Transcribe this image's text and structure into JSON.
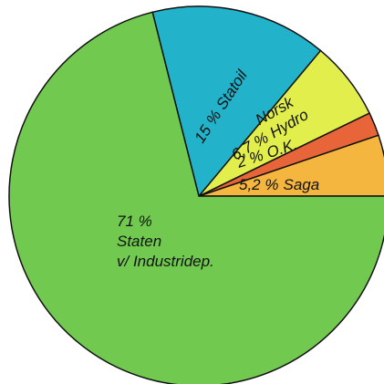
{
  "chart_data": {
    "type": "pie",
    "categories": [
      "Saga",
      "O.K.",
      [
        "Norsk",
        "Hydro"
      ],
      "Statoil",
      [
        "Staten",
        "v/ Industridep."
      ]
    ],
    "values": [
      5.2,
      2,
      6.7,
      15,
      71
    ],
    "value_labels": [
      "5,2 %",
      "2 %",
      "6,7 %",
      "15 %",
      "71 %"
    ],
    "colors": [
      "#f5b640",
      "#e8653a",
      "#e2ee4c",
      "#22b2c9",
      "#72c94f"
    ]
  }
}
